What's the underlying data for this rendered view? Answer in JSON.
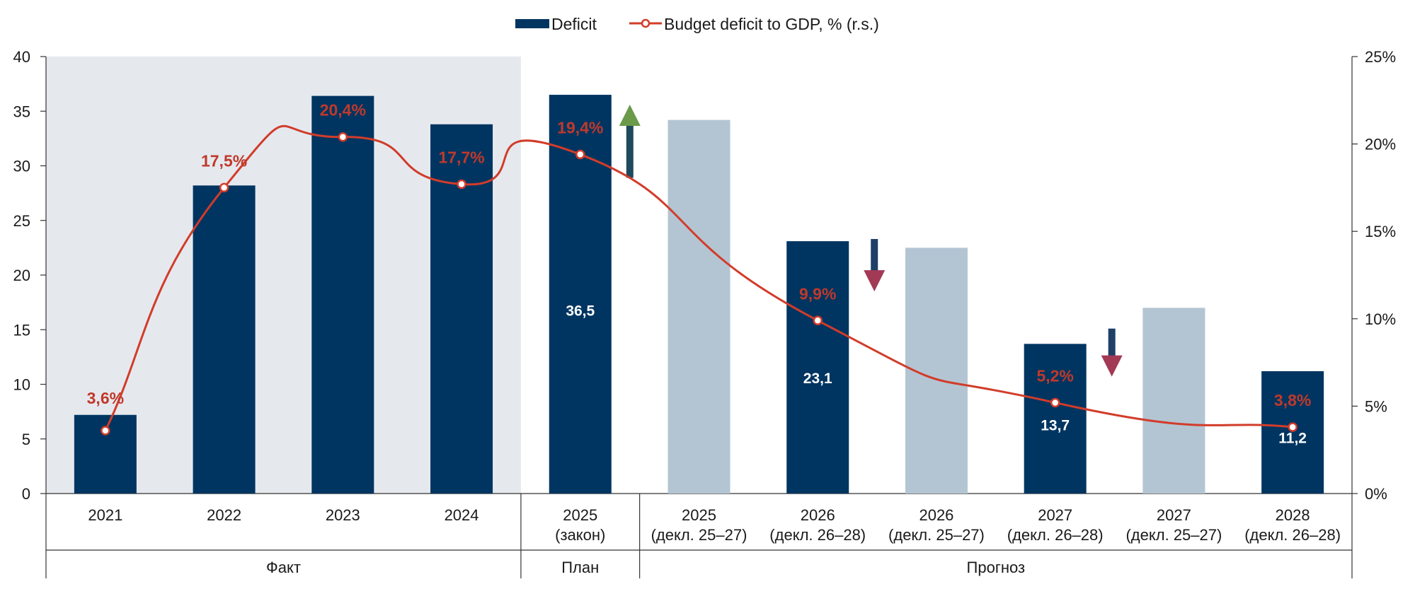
{
  "chart_data": {
    "type": "bar",
    "legend": {
      "placement": "top-center",
      "bar_series": "Deficit",
      "line_series": "Budget deficit to GDP, % (r.s.)"
    },
    "y_left": {
      "ylim": [
        0,
        40
      ],
      "ticks": [
        "0",
        "5",
        "10",
        "15",
        "20",
        "25",
        "30",
        "35",
        "40"
      ]
    },
    "y_right": {
      "ylim": [
        0,
        25
      ],
      "ticks": [
        "0%",
        "5%",
        "10%",
        "15%",
        "20%",
        "25%"
      ]
    },
    "categories": [
      {
        "year": "2021",
        "sub": ""
      },
      {
        "year": "2022",
        "sub": ""
      },
      {
        "year": "2023",
        "sub": ""
      },
      {
        "year": "2024",
        "sub": ""
      },
      {
        "year": "2025",
        "sub": "(закон)"
      },
      {
        "year": "2025",
        "sub": "(декл. 25–27)"
      },
      {
        "year": "2026",
        "sub": "(декл. 26–28)"
      },
      {
        "year": "2026",
        "sub": "(декл. 25–27)"
      },
      {
        "year": "2027",
        "sub": "(декл. 26–28)"
      },
      {
        "year": "2027",
        "sub": "(декл. 25–27)"
      },
      {
        "year": "2028",
        "sub": "(декл. 26–28)"
      }
    ],
    "groups": [
      {
        "label": "Факт",
        "from": 0,
        "to": 3,
        "shaded": true
      },
      {
        "label": "План",
        "from": 4,
        "to": 4,
        "shaded": false
      },
      {
        "label": "Прогноз",
        "from": 5,
        "to": 10,
        "shaded": false
      }
    ],
    "series": [
      {
        "name": "Deficit",
        "values": [
          7.2,
          28.2,
          36.4,
          33.8,
          36.5,
          34.2,
          23.1,
          22.5,
          13.7,
          17.0,
          11.2
        ],
        "styles": [
          "dark",
          "dark",
          "dark",
          "dark",
          "dark",
          "light",
          "dark",
          "light",
          "dark",
          "light",
          "dark"
        ],
        "data_labels": [
          "",
          "",
          "",
          "",
          "36,5",
          "",
          "23,1",
          "",
          "13,7",
          "",
          "11,2"
        ]
      },
      {
        "name": "Budget deficit to GDP, % (r.s.)",
        "axis": "right",
        "points": [
          {
            "cat": 0,
            "value": 3.6,
            "label": "3,6%"
          },
          {
            "cat": 1,
            "value": 17.5,
            "label": "17,5%"
          },
          {
            "cat": 2,
            "value": 20.4,
            "label": "20,4%"
          },
          {
            "cat": 3,
            "value": 17.7,
            "label": "17,7%"
          },
          {
            "cat": 4,
            "value": 19.4,
            "label": "19,4%"
          },
          {
            "cat": 6,
            "value": 9.9,
            "label": "9,9%"
          },
          {
            "cat": 8,
            "value": 5.2,
            "label": "5,2%"
          },
          {
            "cat": 10,
            "value": 3.8,
            "label": "3,8%"
          }
        ]
      }
    ],
    "annotations": [
      {
        "type": "arrow-up",
        "cat": 4,
        "color": "#6a9a4a"
      },
      {
        "type": "arrow-down",
        "cat": 6,
        "color": "#a23a55"
      },
      {
        "type": "arrow-down",
        "cat": 8,
        "color": "#a23a55"
      }
    ],
    "colors": {
      "bar_dark": "#003561",
      "bar_light": "#b3c5d3",
      "line": "#d23c2a",
      "shade": "#e5e9ee",
      "pct_label": "#c0392b"
    }
  }
}
